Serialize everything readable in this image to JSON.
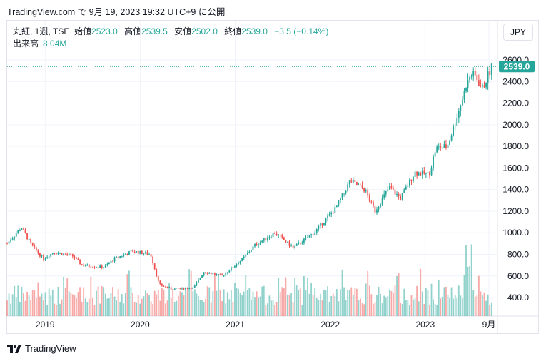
{
  "header": {
    "published": "TradingView.com で 9月 19, 2023 19:32 UTC+9 に公開"
  },
  "legend": {
    "symbol": "丸紅, 1週, TSE",
    "open_label": "始値",
    "open": "2523.0",
    "high_label": "高値",
    "high": "2539.5",
    "low_label": "安値",
    "low": "2502.0",
    "close_label": "終値",
    "close": "2539.0",
    "change": "−3.5 (−0.14%)",
    "volume_label": "出来高",
    "volume": "8.04M"
  },
  "currency_button": "JPY",
  "footer": {
    "logo_text": "TradingView"
  },
  "colors": {
    "up": "#26a69a",
    "down": "#ef5350"
  },
  "chart_data": {
    "type": "candlestick",
    "interval": "1W",
    "last_price": 2539.0,
    "last_price_label": "2539.0",
    "y_ticks": [
      "400.0",
      "600.0",
      "800.0",
      "1000.0",
      "1200.0",
      "1400.0",
      "1600.0",
      "1800.0",
      "2000.0",
      "2200.0",
      "2400.0",
      "2600.0"
    ],
    "y_tick_values": [
      400,
      600,
      800,
      1000,
      1200,
      1400,
      1600,
      1800,
      2000,
      2200,
      2400,
      2600
    ],
    "ylim": [
      250,
      2720
    ],
    "x_ticks": [
      "2019",
      "2020",
      "2021",
      "2022",
      "2023",
      "9月"
    ],
    "x_tick_times": [
      2019.0,
      2020.0,
      2021.0,
      2022.0,
      2023.0,
      2023.67
    ],
    "xlim": [
      2018.6,
      2023.76
    ],
    "price_path": [
      [
        2018.6,
        900
      ],
      [
        2018.75,
        1050
      ],
      [
        2018.86,
        880
      ],
      [
        2018.98,
        760
      ],
      [
        2019.09,
        820
      ],
      [
        2019.28,
        790
      ],
      [
        2019.39,
        700
      ],
      [
        2019.62,
        680
      ],
      [
        2019.73,
        760
      ],
      [
        2019.92,
        830
      ],
      [
        2020.11,
        800
      ],
      [
        2020.2,
        520
      ],
      [
        2020.33,
        480
      ],
      [
        2020.56,
        490
      ],
      [
        2020.67,
        640
      ],
      [
        2020.86,
        600
      ],
      [
        2021.08,
        760
      ],
      [
        2021.2,
        880
      ],
      [
        2021.42,
        1000
      ],
      [
        2021.61,
        860
      ],
      [
        2021.83,
        1000
      ],
      [
        2022.06,
        1230
      ],
      [
        2022.21,
        1480
      ],
      [
        2022.36,
        1400
      ],
      [
        2022.47,
        1200
      ],
      [
        2022.62,
        1420
      ],
      [
        2022.74,
        1320
      ],
      [
        2022.89,
        1560
      ],
      [
        2023.04,
        1540
      ],
      [
        2023.11,
        1780
      ],
      [
        2023.23,
        1800
      ],
      [
        2023.3,
        1980
      ],
      [
        2023.41,
        2300
      ],
      [
        2023.46,
        2480
      ],
      [
        2023.53,
        2450
      ],
      [
        2023.6,
        2330
      ],
      [
        2023.7,
        2539
      ]
    ]
  }
}
